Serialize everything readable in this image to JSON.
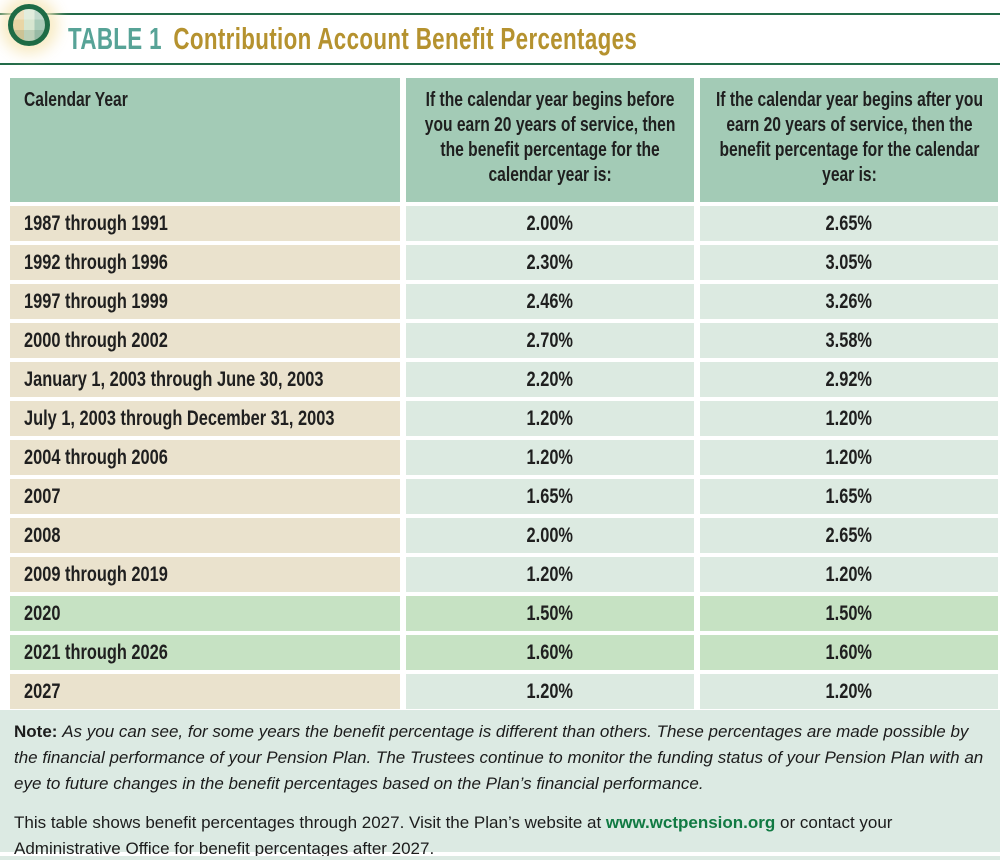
{
  "header": {
    "table_label": "TABLE 1",
    "title": "Contribution Account Benefit Percentages",
    "logo_icon": "quilt-circle-logo"
  },
  "table": {
    "columns": [
      "Calendar Year",
      "If the calendar year begins before you earn 20 years of service, then the benefit percentage for the calendar year is:",
      "If the calendar year begins after you earn 20 years of service, then the benefit percentage for the calendar year is:"
    ],
    "rows": [
      {
        "year": "1987 through 1991",
        "before": "2.00%",
        "after": "2.65%",
        "highlight": false
      },
      {
        "year": "1992 through 1996",
        "before": "2.30%",
        "after": "3.05%",
        "highlight": false
      },
      {
        "year": "1997 through 1999",
        "before": "2.46%",
        "after": "3.26%",
        "highlight": false
      },
      {
        "year": "2000 through 2002",
        "before": "2.70%",
        "after": "3.58%",
        "highlight": false
      },
      {
        "year": "January 1, 2003 through June 30, 2003",
        "before": "2.20%",
        "after": "2.92%",
        "highlight": false
      },
      {
        "year": "July 1, 2003 through December 31, 2003",
        "before": "1.20%",
        "after": "1.20%",
        "highlight": false
      },
      {
        "year": "2004 through 2006",
        "before": "1.20%",
        "after": "1.20%",
        "highlight": false
      },
      {
        "year": "2007",
        "before": "1.65%",
        "after": "1.65%",
        "highlight": false
      },
      {
        "year": "2008",
        "before": "2.00%",
        "after": "2.65%",
        "highlight": false
      },
      {
        "year": "2009 through 2019",
        "before": "1.20%",
        "after": "1.20%",
        "highlight": false
      },
      {
        "year": "2020",
        "before": "1.50%",
        "after": "1.50%",
        "highlight": true
      },
      {
        "year": "2021 through 2026",
        "before": "1.60%",
        "after": "1.60%",
        "highlight": true
      },
      {
        "year": "2027",
        "before": "1.20%",
        "after": "1.20%",
        "highlight": false
      }
    ]
  },
  "notes": {
    "note_label": "Note:",
    "note_text": "As you can see, for some years the benefit percentage is different than others. These percentages are made possible by the financial performance of your Pension Plan. The Trustees continue to monitor the funding status of your Pension Plan with an eye to future changes in the benefit percentages based on the Plan’s financial performance.",
    "footer_pre": "This table shows benefit percentages through 2027. Visit the Plan’s website at ",
    "footer_link": "www.wctpension.org",
    "footer_post": " or contact your Administrative Office for benefit percentages after 2027."
  },
  "colors": {
    "rule_green": "#226b48",
    "label_teal": "#57a397",
    "title_gold": "#b5922f",
    "header_sage": "#a3cbb6",
    "row_tan": "#eae2cd",
    "row_mint": "#dceae1",
    "row_highlight_green": "#c6e2c3",
    "notes_mint": "#dceae3",
    "link_green": "#117a43"
  }
}
